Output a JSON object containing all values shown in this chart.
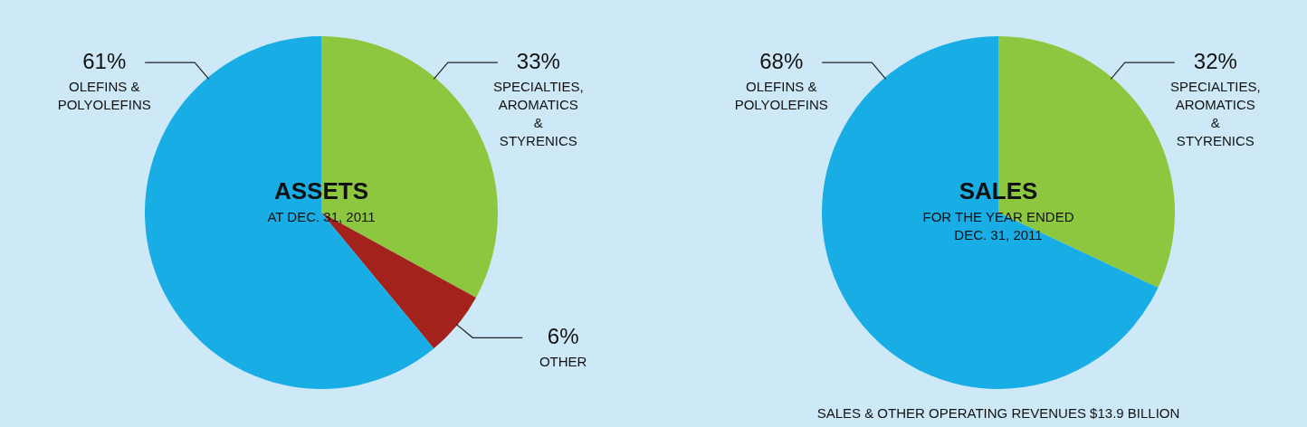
{
  "chart_data": [
    {
      "type": "pie",
      "title": "ASSETS",
      "subtitle": "AT DEC. 31, 2011",
      "categories": [
        "SPECIALTIES, AROMATICS & STYRENICS",
        "OTHER",
        "OLEFINS & POLYOLEFINS"
      ],
      "values": [
        33,
        6,
        61
      ],
      "value_labels": [
        "33%",
        "6%",
        "61%"
      ],
      "colors": [
        "#8dc63f",
        "#a3231c",
        "#19ade6"
      ]
    },
    {
      "type": "pie",
      "title": "SALES",
      "subtitle": "FOR THE YEAR ENDED DEC. 31, 2011",
      "categories": [
        "SPECIALTIES, AROMATICS & STYRENICS",
        "OLEFINS & POLYOLEFINS"
      ],
      "values": [
        32,
        68
      ],
      "value_labels": [
        "32%",
        "68%"
      ],
      "colors": [
        "#8dc63f",
        "#19ade6"
      ],
      "annotations": [
        "SALES & OTHER OPERATING REVENUES $13.9 BILLION"
      ]
    }
  ]
}
